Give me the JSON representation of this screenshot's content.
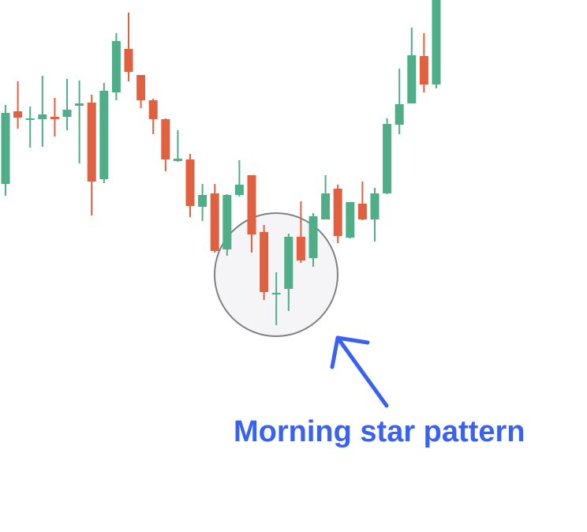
{
  "chart_data": {
    "type": "candlestick",
    "annotation": "Morning star pattern",
    "up_color": "#4fae87",
    "down_color": "#e0603f",
    "ylim": [
      0,
      674
    ],
    "open": [
      441,
      533,
      522,
      523,
      526,
      526,
      540,
      544,
      447,
      557,
      612,
      579,
      547,
      523,
      470,
      472,
      412,
      429,
      358,
      427,
      452,
      380,
      301,
      308,
      374,
      347,
      396,
      435,
      373,
      416,
      396,
      429,
      516,
      543,
      603,
      567
    ],
    "high": [
      541,
      571,
      539,
      578,
      550,
      574,
      572,
      554,
      569,
      632,
      658,
      579,
      549,
      524,
      509,
      479,
      441,
      441,
      428,
      471,
      452,
      389,
      329,
      378,
      419,
      404,
      452,
      440,
      418,
      444,
      436,
      524,
      587,
      639,
      632,
      674
    ],
    "low": [
      426,
      511,
      487,
      488,
      501,
      509,
      467,
      401,
      442,
      547,
      571,
      537,
      504,
      457,
      469,
      399,
      394,
      354,
      350,
      425,
      354,
      294,
      262,
      280,
      341,
      336,
      396,
      366,
      372,
      395,
      368,
      428,
      504,
      543,
      557,
      562
    ],
    "close": [
      531,
      525,
      524,
      529,
      523,
      535,
      543,
      444,
      559,
      622,
      583,
      547,
      523,
      472,
      473,
      413,
      427,
      356,
      427,
      440,
      377,
      304,
      303,
      374,
      344,
      400,
      429,
      375,
      418,
      396,
      429,
      517,
      542,
      604,
      567,
      674
    ]
  }
}
